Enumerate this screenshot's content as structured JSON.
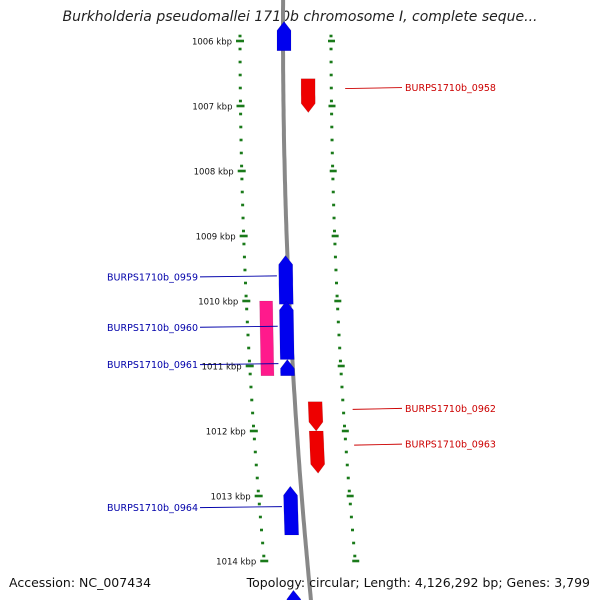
{
  "title": "Burkholderia pseudomallei 1710b chromosome I, complete seque...",
  "accession": "Accession: NC_007434",
  "topology": "Topology: circular; Length: 4,126,292 bp; Genes: 3,799",
  "colors": {
    "backbone": "#888888",
    "tick": "#1a7a1a",
    "forward_gene": "#0000ee",
    "reverse_gene": "#ee0000",
    "pink_gene": "#ff1a8c",
    "forward_label": "#0000aa",
    "reverse_label": "#cc0000"
  },
  "kbp_labels": [
    "1006 kbp",
    "1007 kbp",
    "1008 kbp",
    "1009 kbp",
    "1010 kbp",
    "1011 kbp",
    "1012 kbp",
    "1013 kbp",
    "1014 kbp"
  ],
  "genes": [
    {
      "id": "gene-top",
      "strand": "forward",
      "start_kbp": 1005.7,
      "end_kbp": 1006.15,
      "label": ""
    },
    {
      "id": "BURPS1710b_0958",
      "strand": "reverse",
      "start_kbp": 1006.58,
      "end_kbp": 1007.1,
      "label": "BURPS1710b_0958"
    },
    {
      "id": "BURPS1710b_0959",
      "strand": "forward",
      "start_kbp": 1009.3,
      "end_kbp": 1010.05,
      "label": "BURPS1710b_0959"
    },
    {
      "id": "BURPS1710b_0960",
      "strand": "forward",
      "start_kbp": 1010.0,
      "end_kbp": 1010.9,
      "label": "BURPS1710b_0960"
    },
    {
      "id": "BURPS1710b_0960-pink",
      "strand": "pink",
      "start_kbp": 1010.0,
      "end_kbp": 1011.15,
      "label": ""
    },
    {
      "id": "BURPS1710b_0961",
      "strand": "forward",
      "start_kbp": 1010.9,
      "end_kbp": 1011.15,
      "label": "BURPS1710b_0961"
    },
    {
      "id": "BURPS1710b_0962",
      "strand": "reverse",
      "start_kbp": 1011.55,
      "end_kbp": 1012.0,
      "label": "BURPS1710b_0962"
    },
    {
      "id": "BURPS1710b_0963",
      "strand": "reverse",
      "start_kbp": 1012.0,
      "end_kbp": 1012.65,
      "label": "BURPS1710b_0963"
    },
    {
      "id": "BURPS1710b_0964",
      "strand": "forward",
      "start_kbp": 1012.85,
      "end_kbp": 1013.6,
      "label": "BURPS1710b_0964"
    },
    {
      "id": "gene-bottom",
      "strand": "forward",
      "start_kbp": 1014.45,
      "end_kbp": 1014.8,
      "label": ""
    }
  ]
}
